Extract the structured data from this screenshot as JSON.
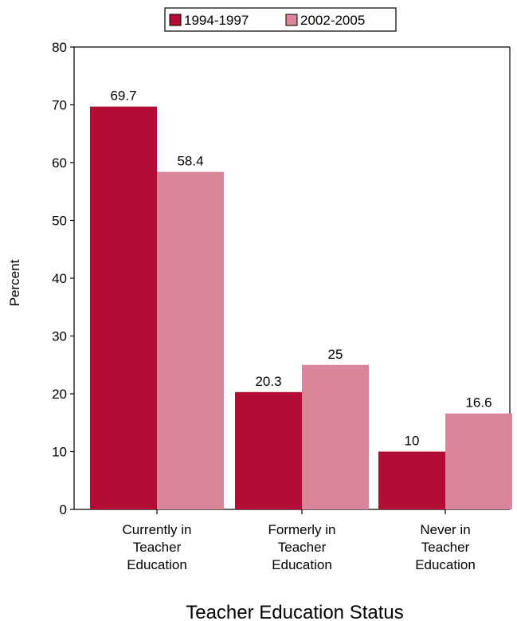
{
  "chart_data": {
    "type": "bar",
    "categories": [
      [
        "Currently in",
        "Teacher",
        "Education"
      ],
      [
        "Formerly in",
        "Teacher",
        "Education"
      ],
      [
        "Never in",
        "Teacher",
        "Education"
      ]
    ],
    "series": [
      {
        "name": "1994-1997",
        "values": [
          69.7,
          20.3,
          10
        ],
        "labels": [
          "69.7",
          "20.3",
          "10"
        ],
        "color": "#b30c35"
      },
      {
        "name": "2002-2005",
        "values": [
          58.4,
          25,
          16.6
        ],
        "labels": [
          "58.4",
          "25",
          "16.6"
        ],
        "color": "#d9869a"
      }
    ],
    "xlabel": "Teacher Education Status",
    "ylabel": "Percent",
    "ylim": [
      0,
      80
    ],
    "yticks": [
      0,
      10,
      20,
      30,
      40,
      50,
      60,
      70,
      80
    ],
    "legend_position": "top-center",
    "grid": false
  }
}
